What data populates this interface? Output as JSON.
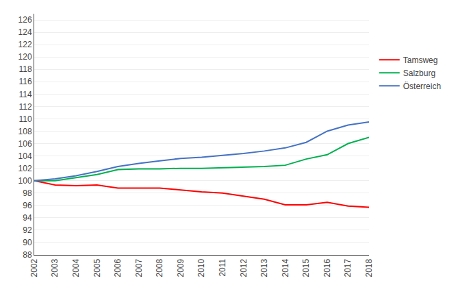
{
  "chart_data": {
    "type": "line",
    "x": [
      2002,
      2003,
      2004,
      2005,
      2006,
      2007,
      2008,
      2009,
      2010,
      2011,
      2012,
      2013,
      2014,
      2015,
      2016,
      2017,
      2018
    ],
    "series": [
      {
        "name": "Tamsweg",
        "color": "#ff0000",
        "values": [
          100.0,
          99.3,
          99.2,
          99.3,
          98.8,
          98.8,
          98.8,
          98.5,
          98.2,
          98.0,
          97.5,
          97.0,
          96.1,
          96.1,
          96.5,
          95.9,
          95.7
        ]
      },
      {
        "name": "Salzburg",
        "color": "#00b050",
        "values": [
          100.0,
          100.0,
          100.5,
          101.0,
          101.8,
          101.9,
          101.9,
          102.0,
          102.0,
          102.1,
          102.2,
          102.3,
          102.5,
          103.5,
          104.2,
          106.0,
          107.0
        ]
      },
      {
        "name": "Österreich",
        "color": "#4472c4",
        "values": [
          100.0,
          100.3,
          100.8,
          101.5,
          102.3,
          102.8,
          103.2,
          103.6,
          103.8,
          104.1,
          104.4,
          104.8,
          105.3,
          106.2,
          108.0,
          109.0,
          109.5
        ]
      }
    ],
    "xlim": [
      2002,
      2018
    ],
    "xticks": [
      2002,
      2003,
      2004,
      2005,
      2006,
      2007,
      2008,
      2009,
      2010,
      2011,
      2012,
      2013,
      2014,
      2015,
      2016,
      2017,
      2018
    ],
    "ylim": [
      88,
      127
    ],
    "yticks": [
      88,
      90,
      92,
      94,
      96,
      98,
      100,
      102,
      104,
      106,
      108,
      110,
      112,
      114,
      116,
      118,
      120,
      122,
      124,
      126
    ],
    "grid": "y",
    "legend": "right"
  }
}
